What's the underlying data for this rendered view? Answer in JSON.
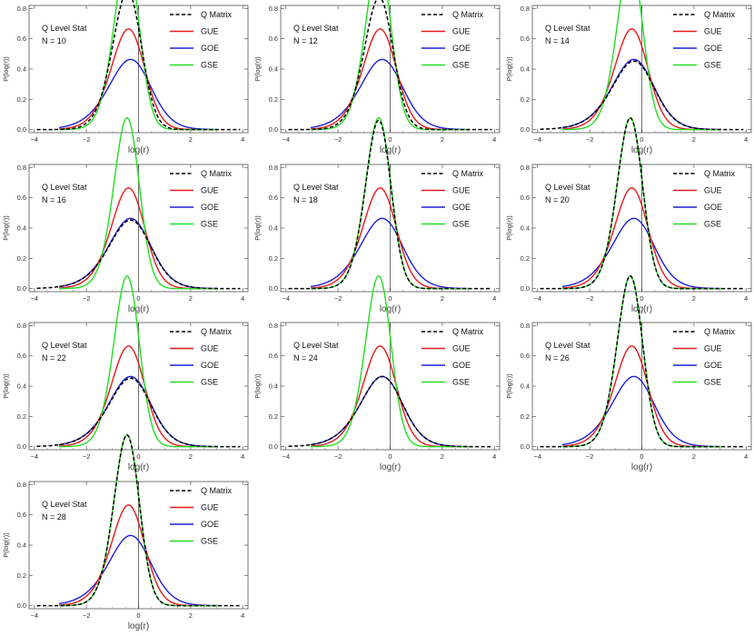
{
  "chart_data": [
    {
      "type": "line",
      "annotation": {
        "title": "Q Level Stat",
        "n_label": "N = 10"
      },
      "xlabel": "log(r)",
      "ylabel": "P(log(r))",
      "xlim": [
        -4.2,
        4.2
      ],
      "ylim": [
        -0.02,
        0.82
      ],
      "xticks": [
        "−4",
        "−2",
        "0",
        "2",
        "4"
      ],
      "yticks": [
        "0.0",
        "0.2",
        "0.4",
        "0.6",
        "0.8"
      ],
      "legend": "top-right",
      "series": [
        {
          "name": "Q Matrix",
          "color": "#000000",
          "dash": true,
          "peak": 0.67
        },
        {
          "name": "GUE",
          "color": "#e31a1c",
          "peak": 0.55
        },
        {
          "name": "GOE",
          "color": "#1f1fd6",
          "peak": 0.43
        },
        {
          "name": "GSE",
          "color": "#22dd22",
          "peak": 0.73
        }
      ]
    },
    {
      "type": "line",
      "annotation": {
        "title": "Q Level Stat",
        "n_label": "N = 12"
      },
      "xlabel": "log(r)",
      "ylabel": "P(log(r))",
      "xlim": [
        -4.2,
        4.2
      ],
      "ylim": [
        -0.02,
        0.82
      ],
      "xticks": [
        "−4",
        "−2",
        "0",
        "2",
        "4"
      ],
      "yticks": [
        "0.0",
        "0.2",
        "0.4",
        "0.6",
        "0.8"
      ],
      "legend": "top-right",
      "series": [
        {
          "name": "Q Matrix",
          "color": "#000000",
          "dash": true,
          "peak": 0.64
        },
        {
          "name": "GUE",
          "color": "#e31a1c",
          "peak": 0.55
        },
        {
          "name": "GOE",
          "color": "#1f1fd6",
          "peak": 0.43
        },
        {
          "name": "GSE",
          "color": "#22dd22",
          "peak": 0.73
        }
      ]
    },
    {
      "type": "line",
      "annotation": {
        "title": "Q Level Stat",
        "n_label": "N = 14"
      },
      "xlabel": "log(r)",
      "ylabel": "P(log(r))",
      "xlim": [
        -4.2,
        4.2
      ],
      "ylim": [
        -0.02,
        0.82
      ],
      "xticks": [
        "−4",
        "−2",
        "0",
        "2",
        "4"
      ],
      "yticks": [
        "0.0",
        "0.2",
        "0.4",
        "0.6",
        "0.8"
      ],
      "legend": "top-right",
      "series": [
        {
          "name": "Q Matrix",
          "color": "#000000",
          "dash": true,
          "peak": 0.42
        },
        {
          "name": "GUE",
          "color": "#e31a1c",
          "peak": 0.55
        },
        {
          "name": "GOE",
          "color": "#1f1fd6",
          "peak": 0.43
        },
        {
          "name": "GSE",
          "color": "#22dd22",
          "peak": 0.73
        }
      ]
    },
    {
      "type": "line",
      "annotation": {
        "title": "Q Level Stat",
        "n_label": "N = 16"
      },
      "xlabel": "log(r)",
      "ylabel": "P(log(r))",
      "xlim": [
        -4.2,
        4.2
      ],
      "ylim": [
        -0.02,
        0.82
      ],
      "xticks": [
        "−4",
        "−2",
        "0",
        "2",
        "4"
      ],
      "yticks": [
        "0.0",
        "0.2",
        "0.4",
        "0.6",
        "0.8"
      ],
      "legend": "top-right",
      "series": [
        {
          "name": "Q Matrix",
          "color": "#000000",
          "dash": true,
          "peak": 0.42
        },
        {
          "name": "GUE",
          "color": "#e31a1c",
          "peak": 0.55
        },
        {
          "name": "GOE",
          "color": "#1f1fd6",
          "peak": 0.43
        },
        {
          "name": "GSE",
          "color": "#22dd22",
          "peak": 0.73
        }
      ]
    },
    {
      "type": "line",
      "annotation": {
        "title": "Q Level Stat",
        "n_label": "N = 18"
      },
      "xlabel": "log(r)",
      "ylabel": "P(log(r))",
      "xlim": [
        -4.2,
        4.2
      ],
      "ylim": [
        -0.02,
        0.82
      ],
      "xticks": [
        "−4",
        "−2",
        "0",
        "2",
        "4"
      ],
      "yticks": [
        "0.0",
        "0.2",
        "0.4",
        "0.6",
        "0.8"
      ],
      "legend": "top-right",
      "series": [
        {
          "name": "Q Matrix",
          "color": "#000000",
          "dash": true,
          "peak": 0.72
        },
        {
          "name": "GUE",
          "color": "#e31a1c",
          "peak": 0.55
        },
        {
          "name": "GOE",
          "color": "#1f1fd6",
          "peak": 0.43
        },
        {
          "name": "GSE",
          "color": "#22dd22",
          "peak": 0.73
        }
      ]
    },
    {
      "type": "line",
      "annotation": {
        "title": "Q Level Stat",
        "n_label": "N = 20"
      },
      "xlabel": "log(r)",
      "ylabel": "P(log(r))",
      "xlim": [
        -4.2,
        4.2
      ],
      "ylim": [
        -0.02,
        0.82
      ],
      "xticks": [
        "−4",
        "−2",
        "0",
        "2",
        "4"
      ],
      "yticks": [
        "0.0",
        "0.2",
        "0.4",
        "0.6",
        "0.8"
      ],
      "legend": "top-right",
      "series": [
        {
          "name": "Q Matrix",
          "color": "#000000",
          "dash": true,
          "peak": 0.73
        },
        {
          "name": "GUE",
          "color": "#e31a1c",
          "peak": 0.55
        },
        {
          "name": "GOE",
          "color": "#1f1fd6",
          "peak": 0.43
        },
        {
          "name": "GSE",
          "color": "#22dd22",
          "peak": 0.73
        }
      ]
    },
    {
      "type": "line",
      "annotation": {
        "title": "Q Level Stat",
        "n_label": "N = 22"
      },
      "xlabel": "log(r)",
      "ylabel": "P(log(r))",
      "xlim": [
        -4.2,
        4.2
      ],
      "ylim": [
        -0.02,
        0.82
      ],
      "xticks": [
        "−4",
        "−2",
        "0",
        "2",
        "4"
      ],
      "yticks": [
        "0.0",
        "0.2",
        "0.4",
        "0.6",
        "0.8"
      ],
      "legend": "top-right",
      "series": [
        {
          "name": "Q Matrix",
          "color": "#000000",
          "dash": true,
          "peak": 0.42
        },
        {
          "name": "GUE",
          "color": "#e31a1c",
          "peak": 0.55
        },
        {
          "name": "GOE",
          "color": "#1f1fd6",
          "peak": 0.43
        },
        {
          "name": "GSE",
          "color": "#22dd22",
          "peak": 0.73
        }
      ]
    },
    {
      "type": "line",
      "annotation": {
        "title": "Q Level Stat",
        "n_label": "N = 24"
      },
      "xlabel": "log(r)",
      "ylabel": "P(log(r))",
      "xlim": [
        -4.2,
        4.2
      ],
      "ylim": [
        -0.02,
        0.82
      ],
      "xticks": [
        "−4",
        "−2",
        "0",
        "2",
        "4"
      ],
      "yticks": [
        "0.0",
        "0.2",
        "0.4",
        "0.6",
        "0.8"
      ],
      "legend": "top-right",
      "series": [
        {
          "name": "Q Matrix",
          "color": "#000000",
          "dash": true,
          "peak": 0.43
        },
        {
          "name": "GUE",
          "color": "#e31a1c",
          "peak": 0.55
        },
        {
          "name": "GOE",
          "color": "#1f1fd6",
          "peak": 0.43
        },
        {
          "name": "GSE",
          "color": "#22dd22",
          "peak": 0.73
        }
      ]
    },
    {
      "type": "line",
      "annotation": {
        "title": "Q Level Stat",
        "n_label": "N = 26"
      },
      "xlabel": "log(r)",
      "ylabel": "P(log(r))",
      "xlim": [
        -4.2,
        4.2
      ],
      "ylim": [
        -0.02,
        0.82
      ],
      "xticks": [
        "−4",
        "−2",
        "0",
        "2",
        "4"
      ],
      "yticks": [
        "0.0",
        "0.2",
        "0.4",
        "0.6",
        "0.8"
      ],
      "legend": "top-right",
      "series": [
        {
          "name": "Q Matrix",
          "color": "#000000",
          "dash": true,
          "peak": 0.73
        },
        {
          "name": "GUE",
          "color": "#e31a1c",
          "peak": 0.55
        },
        {
          "name": "GOE",
          "color": "#1f1fd6",
          "peak": 0.43
        },
        {
          "name": "GSE",
          "color": "#22dd22",
          "peak": 0.73
        }
      ]
    },
    {
      "type": "line",
      "annotation": {
        "title": "Q Level Stat",
        "n_label": "N = 28"
      },
      "xlabel": "log(r)",
      "ylabel": "P(log(r))",
      "xlim": [
        -4.2,
        4.2
      ],
      "ylim": [
        -0.02,
        0.82
      ],
      "xticks": [
        "−4",
        "−2",
        "0",
        "2",
        "4"
      ],
      "yticks": [
        "0.0",
        "0.2",
        "0.4",
        "0.6",
        "0.8"
      ],
      "legend": "top-right",
      "series": [
        {
          "name": "Q Matrix",
          "color": "#000000",
          "dash": true,
          "peak": 0.73
        },
        {
          "name": "GUE",
          "color": "#e31a1c",
          "peak": 0.55
        },
        {
          "name": "GOE",
          "color": "#1f1fd6",
          "peak": 0.43
        },
        {
          "name": "GSE",
          "color": "#22dd22",
          "peak": 0.73
        }
      ]
    }
  ]
}
